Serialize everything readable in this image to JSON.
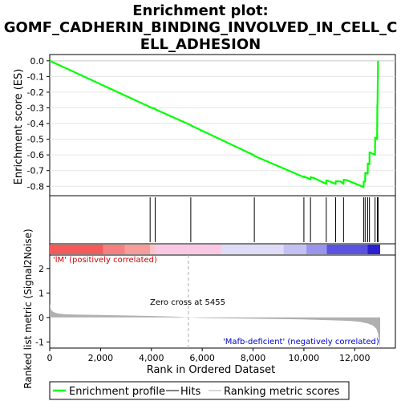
{
  "chart_data": {
    "type": "line",
    "title_lines": [
      "Enrichment plot:",
      "GOMF_CADHERIN_BINDING_INVOLVED_IN_CELL_C",
      "ELL_ADHESION"
    ],
    "x_range": [
      0,
      13600
    ],
    "x_ticks": [
      0,
      2000,
      4000,
      6000,
      8000,
      10000,
      12000
    ],
    "x_tick_labels": [
      "0",
      "2,000",
      "4,000",
      "6,000",
      "8,000",
      "10,000",
      "12,000"
    ],
    "xlabel": "Rank in Ordered Dataset",
    "top_panel": {
      "ylabel": "Enrichment score (ES)",
      "ylim": [
        -0.86,
        0.04
      ],
      "y_ticks": [
        0.0,
        -0.1,
        -0.2,
        -0.3,
        -0.4,
        -0.5,
        -0.6,
        -0.7,
        -0.8
      ],
      "y_tick_labels": [
        "0.0",
        "-0.1",
        "-0.2",
        "-0.3",
        "-0.4",
        "-0.5",
        "-0.6",
        "-0.7",
        "-0.8"
      ],
      "series": [
        {
          "name": "Enrichment profile",
          "color": "#00ff00",
          "x": [
            0,
            3950,
            3955,
            4150,
            4155,
            5550,
            5555,
            8050,
            8055,
            10000,
            10005,
            10100,
            10260,
            10265,
            10400,
            10880,
            10885,
            11000,
            11250,
            11255,
            11450,
            11560,
            11565,
            11700,
            12350,
            12355,
            12410,
            12415,
            12510,
            12515,
            12580,
            12585,
            12800,
            12805,
            12880,
            12890,
            12895,
            12920
          ],
          "y": [
            0.0,
            -0.295,
            -0.298,
            -0.305,
            -0.31,
            -0.41,
            -0.412,
            -0.603,
            -0.607,
            -0.742,
            -0.737,
            -0.745,
            -0.755,
            -0.742,
            -0.748,
            -0.785,
            -0.762,
            -0.768,
            -0.785,
            -0.767,
            -0.77,
            -0.785,
            -0.758,
            -0.762,
            -0.805,
            -0.77,
            -0.77,
            -0.715,
            -0.72,
            -0.655,
            -0.66,
            -0.583,
            -0.6,
            -0.49,
            -0.5,
            -0.28,
            -0.28,
            0.0
          ]
        }
      ]
    },
    "hits_panel": {
      "hit_positions": [
        3950,
        4150,
        5550,
        8050,
        10000,
        10260,
        10880,
        11250,
        11560,
        12350,
        12410,
        12510,
        12580,
        12800,
        12890,
        12920
      ]
    },
    "gradient_panel": {
      "bands": [
        {
          "from": 0,
          "to": 2100,
          "color": "#f55a5a"
        },
        {
          "from": 2100,
          "to": 2950,
          "color": "#f67f7f"
        },
        {
          "from": 2950,
          "to": 3950,
          "color": "#f89b9b"
        },
        {
          "from": 3950,
          "to": 4150,
          "color": "#fbc3c3"
        },
        {
          "from": 4150,
          "to": 6750,
          "color": "#fac7e4"
        },
        {
          "from": 6750,
          "to": 9200,
          "color": "#dedcf7"
        },
        {
          "from": 9200,
          "to": 10100,
          "color": "#c3c0f3"
        },
        {
          "from": 10100,
          "to": 10900,
          "color": "#9a95ec"
        },
        {
          "from": 10900,
          "to": 12500,
          "color": "#5a52e0"
        },
        {
          "from": 12500,
          "to": 13000,
          "color": "#2a1ed0"
        }
      ],
      "left_label": "'lM' (positively correlated)",
      "right_label": "'Mafb-deficient' (negatively correlated)",
      "left_label_color": "#cc0000",
      "right_label_color": "#0000cc"
    },
    "metric_panel": {
      "ylabel": "Ranked list metric (Signal2Noise)",
      "ylim": [
        -1.25,
        2.55
      ],
      "y_ticks": [
        2,
        1,
        0,
        -1
      ],
      "y_tick_labels": [
        "2",
        "1",
        "0",
        "-1"
      ],
      "zero_cross": 5455,
      "zero_cross_label": "Zero cross at 5455",
      "area_color": "#b0b0b0",
      "x": [
        0,
        60,
        150,
        300,
        600,
        1000,
        2000,
        3000,
        4000,
        5000,
        5455,
        5460,
        6000,
        8000,
        10000,
        11000,
        11800,
        12200,
        12500,
        12700,
        12850,
        12920,
        12960,
        13000
      ],
      "y": [
        0.55,
        0.3,
        0.22,
        0.17,
        0.13,
        0.12,
        0.1,
        0.08,
        0.06,
        0.03,
        0.0,
        0.0,
        -0.02,
        -0.05,
        -0.08,
        -0.11,
        -0.14,
        -0.18,
        -0.24,
        -0.32,
        -0.45,
        -0.65,
        -0.95,
        -1.2
      ]
    },
    "legend": {
      "entries": [
        "Enrichment profile",
        "Hits",
        "Ranking metric scores"
      ],
      "placement": "bottom"
    }
  },
  "colors": {
    "profile": "#00ff00",
    "hit": "#000000",
    "metric": "#b0b0b0",
    "zero_line": "#aaaaaa"
  }
}
